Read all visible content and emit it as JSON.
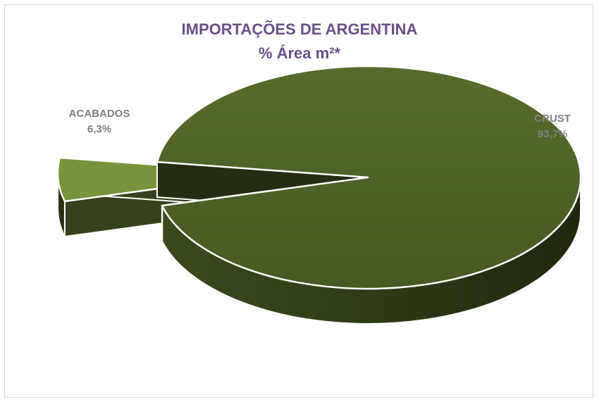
{
  "chart_data": {
    "type": "pie",
    "title": "IMPORTAÇÕES DE ARGENTINA",
    "subtitle": "% Área m²*",
    "slices": [
      {
        "label": "CRUST",
        "value": 93.7,
        "value_label": "93,7%",
        "color": "#4f6228"
      },
      {
        "label": "ACABADOS",
        "value": 6.3,
        "value_label": "6,3%",
        "color": "#77933c"
      }
    ],
    "legend": "none",
    "style": "3d-exploded"
  }
}
